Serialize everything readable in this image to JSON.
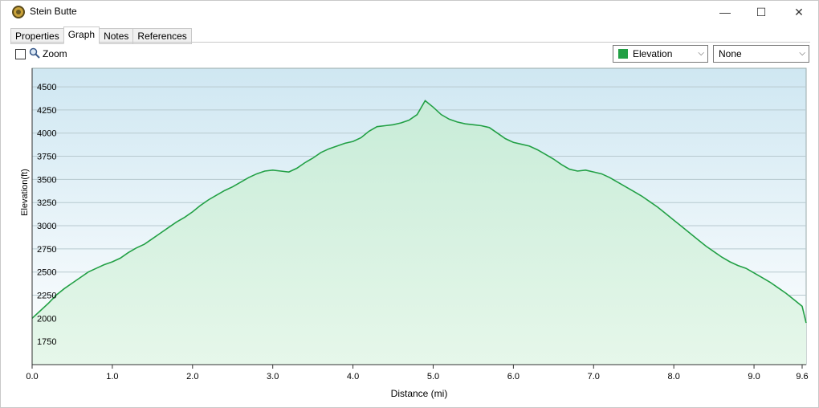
{
  "window": {
    "title": "Stein Butte",
    "minimize": "—",
    "maximize": "☐",
    "close": "✕"
  },
  "tabs": [
    "Properties",
    "Graph",
    "Notes",
    "References"
  ],
  "active_tab": "Graph",
  "toolbar": {
    "zoom_label": "Zoom",
    "zoom_checked": false,
    "series_select": "Elevation",
    "series_color": "#22a045",
    "secondary_select": "None"
  },
  "chart_data": {
    "type": "area",
    "xlabel": "Distance  (mi)",
    "ylabel": "Elevation(ft)",
    "xlim": [
      0,
      9.65
    ],
    "ylim": [
      1500,
      4700
    ],
    "x_ticks": [
      "0.0",
      "1.0",
      "2.0",
      "3.0",
      "4.0",
      "5.0",
      "6.0",
      "7.0",
      "8.0",
      "9.0",
      "9.6"
    ],
    "x_tick_values": [
      0,
      1,
      2,
      3,
      4,
      5,
      6,
      7,
      8,
      9,
      9.6
    ],
    "y_ticks": [
      1750,
      2000,
      2250,
      2500,
      2750,
      3000,
      3250,
      3500,
      3750,
      4000,
      4250,
      4500
    ],
    "grid": true,
    "series": [
      {
        "color": "#22a045",
        "x": [
          0.0,
          0.1,
          0.2,
          0.3,
          0.4,
          0.5,
          0.6,
          0.7,
          0.8,
          0.9,
          1.0,
          1.1,
          1.2,
          1.3,
          1.4,
          1.5,
          1.6,
          1.7,
          1.8,
          1.9,
          2.0,
          2.1,
          2.2,
          2.3,
          2.4,
          2.5,
          2.6,
          2.7,
          2.8,
          2.9,
          3.0,
          3.1,
          3.2,
          3.3,
          3.4,
          3.5,
          3.6,
          3.7,
          3.8,
          3.9,
          4.0,
          4.1,
          4.2,
          4.3,
          4.4,
          4.5,
          4.6,
          4.7,
          4.8,
          4.9,
          5.0,
          5.1,
          5.2,
          5.3,
          5.4,
          5.5,
          5.6,
          5.7,
          5.8,
          5.9,
          6.0,
          6.1,
          6.2,
          6.3,
          6.4,
          6.5,
          6.6,
          6.7,
          6.8,
          6.9,
          7.0,
          7.1,
          7.2,
          7.3,
          7.4,
          7.5,
          7.6,
          7.7,
          7.8,
          7.9,
          8.0,
          8.1,
          8.2,
          8.3,
          8.4,
          8.5,
          8.6,
          8.7,
          8.8,
          8.9,
          9.0,
          9.1,
          9.2,
          9.3,
          9.4,
          9.5,
          9.6,
          9.65
        ],
        "y": [
          2000,
          2080,
          2160,
          2250,
          2320,
          2380,
          2440,
          2500,
          2540,
          2580,
          2610,
          2650,
          2710,
          2760,
          2800,
          2860,
          2920,
          2980,
          3040,
          3090,
          3150,
          3220,
          3280,
          3330,
          3380,
          3420,
          3470,
          3520,
          3560,
          3590,
          3600,
          3590,
          3580,
          3620,
          3680,
          3730,
          3790,
          3830,
          3860,
          3890,
          3910,
          3950,
          4020,
          4070,
          4080,
          4090,
          4110,
          4140,
          4200,
          4350,
          4280,
          4200,
          4150,
          4120,
          4100,
          4090,
          4080,
          4060,
          4000,
          3940,
          3900,
          3880,
          3860,
          3820,
          3770,
          3720,
          3660,
          3610,
          3590,
          3600,
          3580,
          3560,
          3520,
          3470,
          3420,
          3370,
          3320,
          3260,
          3200,
          3130,
          3060,
          2990,
          2920,
          2850,
          2780,
          2720,
          2660,
          2610,
          2570,
          2540,
          2490,
          2440,
          2390,
          2330,
          2270,
          2200,
          2130,
          1950
        ]
      }
    ]
  }
}
